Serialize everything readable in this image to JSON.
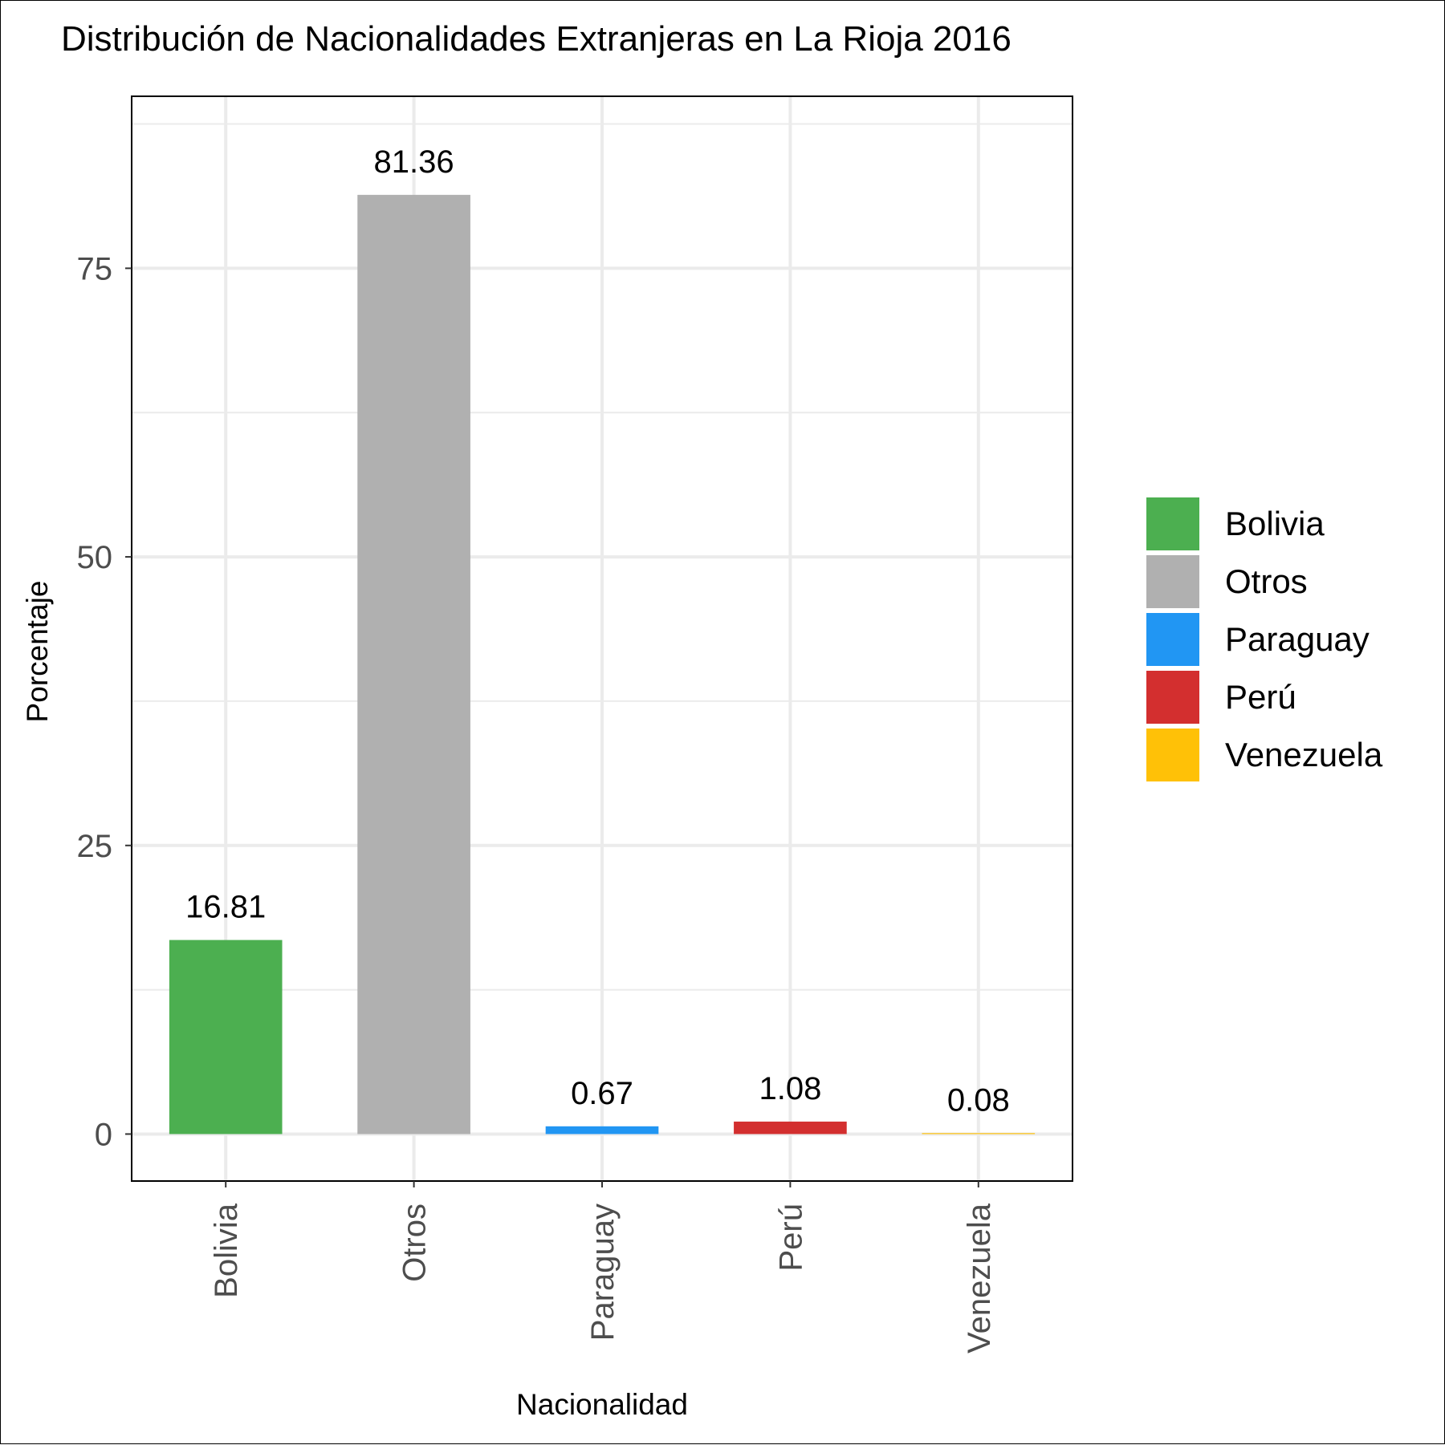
{
  "chart_data": {
    "type": "bar",
    "title": "Distribución de Nacionalidades Extranjeras en La Rioja 2016",
    "xlabel": "Nacionalidad",
    "ylabel": "Porcentaje",
    "categories": [
      "Bolivia",
      "Otros",
      "Paraguay",
      "Perú",
      "Venezuela"
    ],
    "values": [
      16.81,
      81.36,
      0.67,
      1.08,
      0.08
    ],
    "value_labels": [
      "16.81",
      "81.36",
      "0.67",
      "1.08",
      "0.08"
    ],
    "colors": [
      "#4caf50",
      "#b0b0b0",
      "#2196f3",
      "#d32f2f",
      "#ffc107"
    ],
    "ylim": [
      -4.07,
      89.9
    ],
    "yticks": [
      0,
      25,
      50,
      75
    ],
    "ytick_labels": [
      "0",
      "25",
      "50",
      "75"
    ],
    "grid": true,
    "legend": {
      "position": "right",
      "entries": [
        "Bolivia",
        "Otros",
        "Paraguay",
        "Perú",
        "Venezuela"
      ]
    }
  }
}
